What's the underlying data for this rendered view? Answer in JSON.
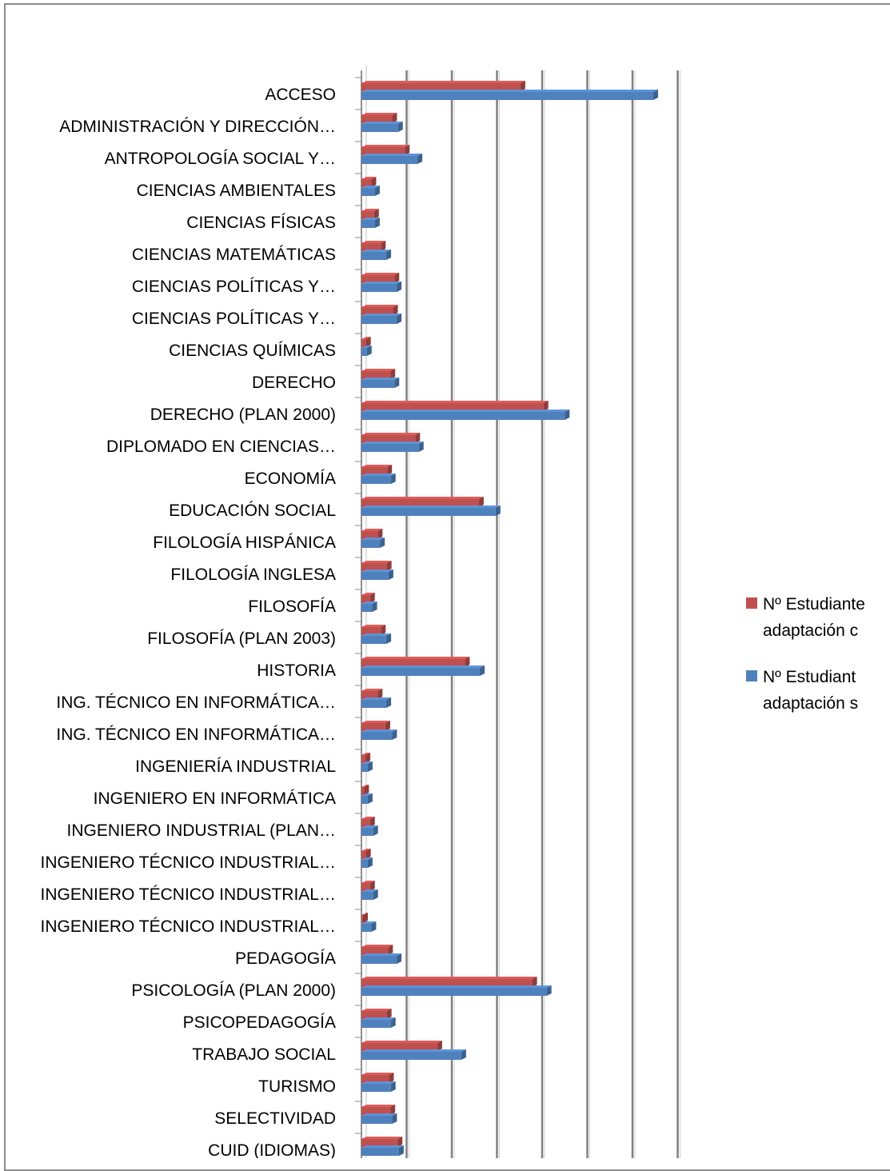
{
  "chart_data": {
    "type": "bar",
    "orientation": "horizontal",
    "style": "3d-clustered",
    "categories": [
      "ACCESO",
      "ADMINISTRACIÓN Y DIRECCIÓN…",
      "ANTROPOLOGÍA SOCIAL Y…",
      "CIENCIAS AMBIENTALES",
      "CIENCIAS FÍSICAS",
      "CIENCIAS MATEMÁTICAS",
      "CIENCIAS POLÍTICAS Y…",
      "CIENCIAS POLÍTICAS Y…",
      "CIENCIAS QUÍMICAS",
      "DERECHO",
      "DERECHO (PLAN 2000)",
      "DIPLOMADO EN CIENCIAS…",
      "ECONOMÍA",
      "EDUCACIÓN SOCIAL",
      "FILOLOGÍA HISPÁNICA",
      "FILOLOGÍA INGLESA",
      "FILOSOFÍA",
      "FILOSOFÍA (PLAN 2003)",
      "HISTORIA",
      "ING. TÉCNICO EN INFORMÁTICA…",
      "ING. TÉCNICO EN INFORMÁTICA…",
      "INGENIERÍA INDUSTRIAL",
      "INGENIERO EN INFORMÁTICA",
      "INGENIERO INDUSTRIAL (PLAN…",
      "INGENIERO TÉCNICO INDUSTRIAL…",
      "INGENIERO TÉCNICO INDUSTRIAL…",
      "INGENIERO TÉCNICO INDUSTRIAL…",
      "PEDAGOGÍA",
      "PSICOLOGÍA (PLAN 2000)",
      "PSICOPEDAGOGÍA",
      "TRABAJO SOCIAL",
      "TURISMO",
      "SELECTIVIDAD",
      "CUID (IDIOMAS)"
    ],
    "series": [
      {
        "name": "Nº Estudiantes ... adaptación c...",
        "legend_lines": [
          "Nº Estudiante",
          "adaptación c"
        ],
        "color": "#c0504d",
        "values": [
          3.52,
          0.68,
          0.96,
          0.22,
          0.28,
          0.43,
          0.73,
          0.7,
          0.1,
          0.64,
          4.03,
          1.19,
          0.57,
          2.6,
          0.36,
          0.56,
          0.19,
          0.43,
          2.29,
          0.36,
          0.53,
          0.09,
          0.06,
          0.19,
          0.1,
          0.19,
          0.03,
          0.59,
          3.78,
          0.56,
          1.68,
          0.61,
          0.64,
          0.8
        ]
      },
      {
        "name": "Nº Estudiantes ... adaptación s...",
        "legend_lines": [
          "Nº  Estudiant",
          "adaptación s"
        ],
        "color": "#4f81bd",
        "values": [
          6.46,
          0.81,
          1.24,
          0.3,
          0.3,
          0.55,
          0.78,
          0.78,
          0.12,
          0.73,
          4.5,
          1.27,
          0.65,
          2.97,
          0.41,
          0.6,
          0.24,
          0.55,
          2.62,
          0.55,
          0.68,
          0.14,
          0.14,
          0.26,
          0.14,
          0.26,
          0.22,
          0.78,
          4.1,
          0.65,
          2.21,
          0.65,
          0.68,
          0.83
        ]
      }
    ],
    "xlim": [
      0,
      7
    ],
    "grid": true,
    "legend": "right",
    "title": "",
    "xlabel": "",
    "ylabel": ""
  }
}
